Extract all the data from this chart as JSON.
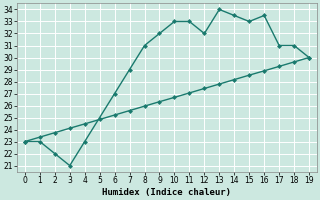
{
  "xlabel": "Humidex (Indice chaleur)",
  "line1_x": [
    0,
    1,
    2,
    3,
    4,
    6,
    7,
    8,
    9,
    10,
    11,
    12,
    13,
    14,
    15,
    16,
    17,
    18,
    19
  ],
  "line1_y": [
    23,
    23,
    22,
    21,
    23,
    27,
    29,
    31,
    32,
    33,
    33,
    32,
    34,
    33.5,
    33,
    33.5,
    31,
    31,
    30
  ],
  "line2_x": [
    0,
    1,
    2,
    3,
    4,
    5,
    6,
    7,
    8,
    9,
    10,
    11,
    12,
    13,
    14,
    15,
    16,
    17,
    18,
    19
  ],
  "line2_y": [
    23,
    23.37,
    23.74,
    24.11,
    24.47,
    24.84,
    25.21,
    25.58,
    25.95,
    26.32,
    26.68,
    27.05,
    27.42,
    27.79,
    28.16,
    28.53,
    28.89,
    29.26,
    29.63,
    30
  ],
  "line_color": "#1a7a6e",
  "bg_color": "#cce8e0",
  "grid_color": "#ffffff",
  "xlim": [
    -0.5,
    19.5
  ],
  "ylim": [
    20.5,
    34.5
  ],
  "yticks": [
    21,
    22,
    23,
    24,
    25,
    26,
    27,
    28,
    29,
    30,
    31,
    32,
    33,
    34
  ],
  "xticks": [
    0,
    1,
    2,
    3,
    4,
    5,
    6,
    7,
    8,
    9,
    10,
    11,
    12,
    13,
    14,
    15,
    16,
    17,
    18,
    19
  ],
  "marker": "D",
  "marker_size": 2,
  "line_width": 1.0,
  "tick_fontsize": 5.5,
  "xlabel_fontsize": 6.5
}
